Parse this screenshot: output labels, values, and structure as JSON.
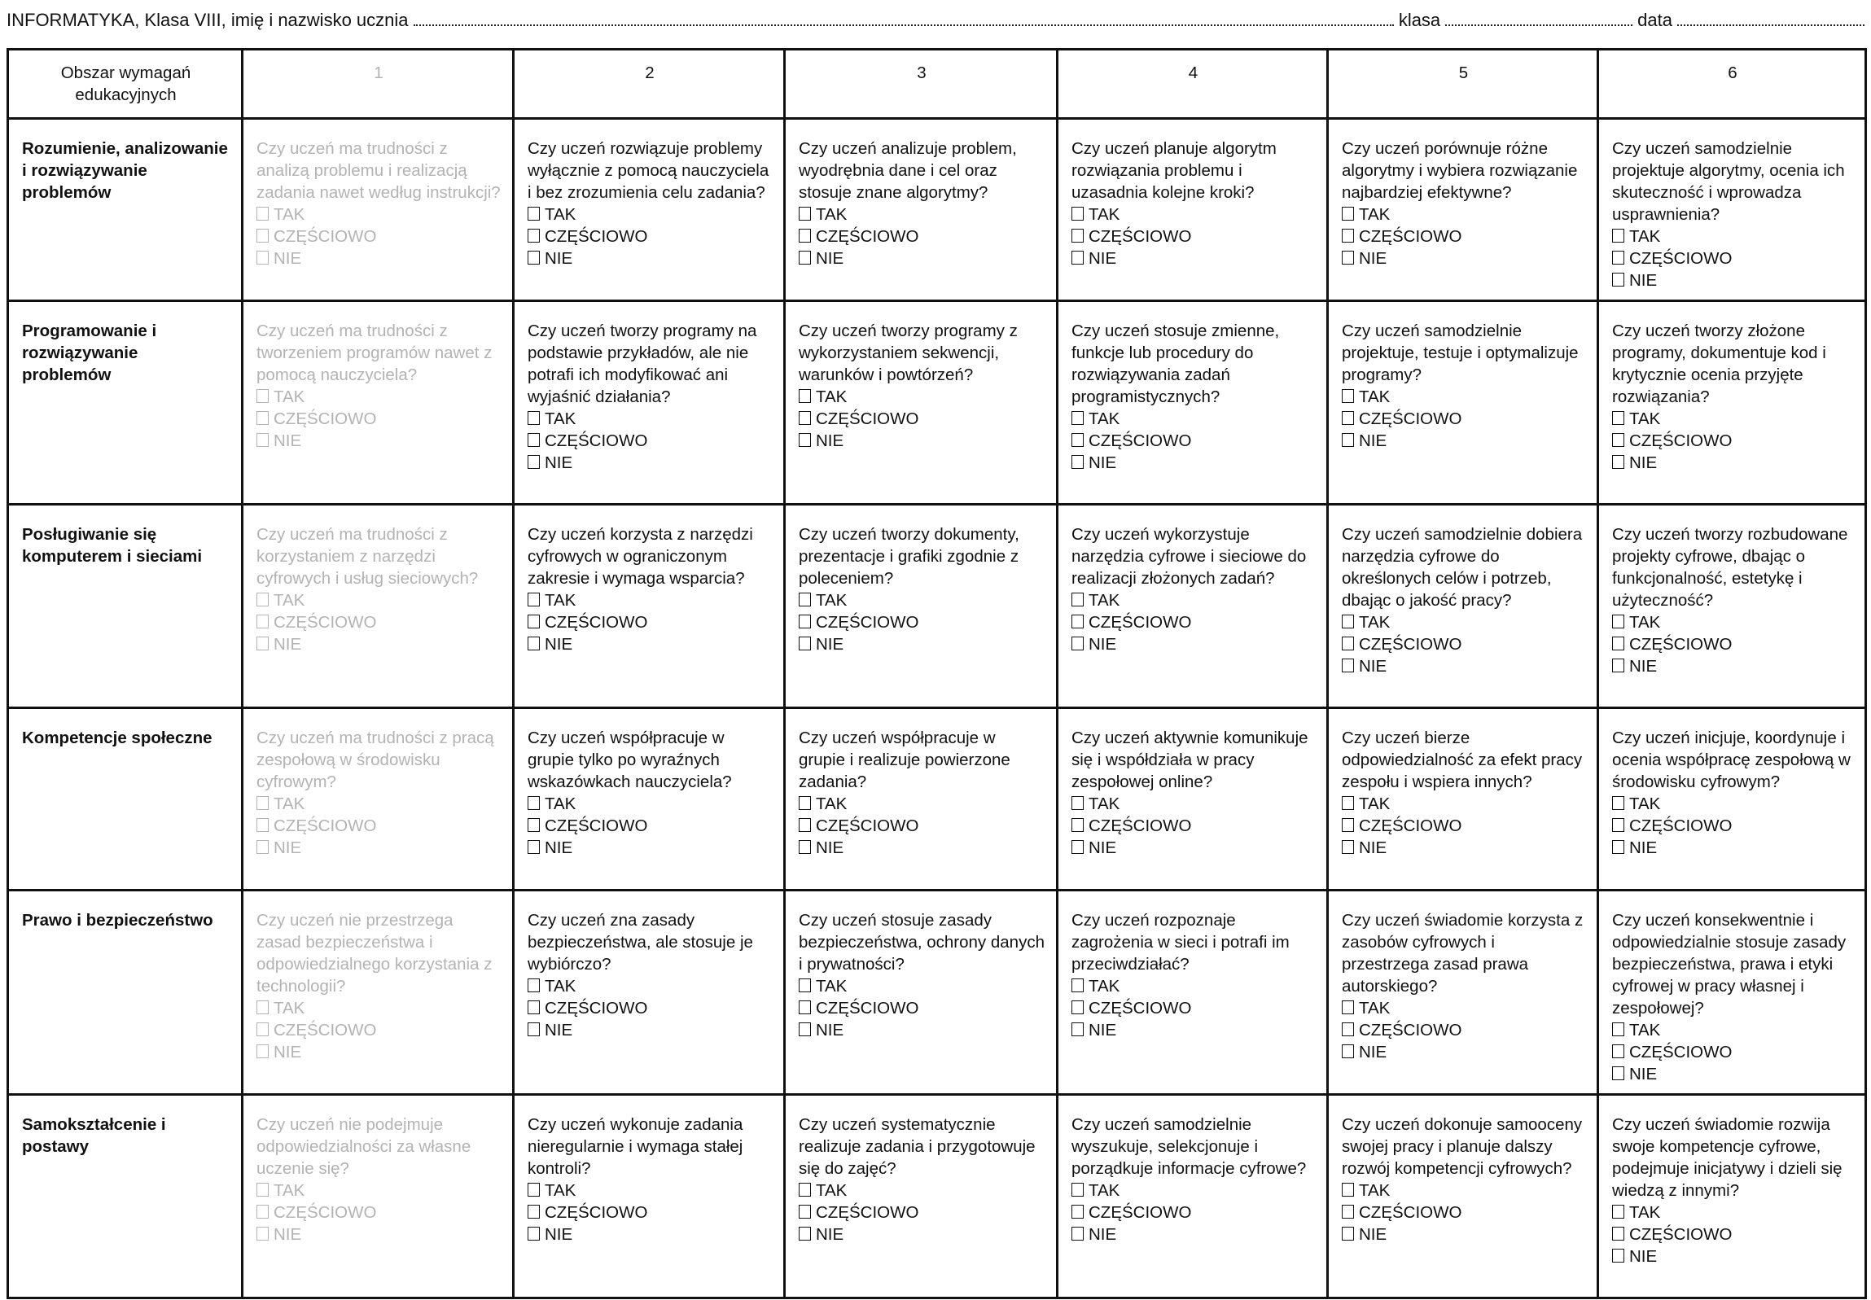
{
  "header": {
    "subject_line": "INFORMATYKA, Klasa VIII, imię i nazwisko ucznia",
    "class_label": "klasa",
    "date_label": "data"
  },
  "table": {
    "corner_header": "Obszar wymagań edukacyjnych",
    "levels": [
      "1",
      "2",
      "3",
      "4",
      "5",
      "6"
    ],
    "options": [
      "TAK",
      "CZĘŚCIOWO",
      "NIE"
    ],
    "checkbox_icon": "empty-checkbox",
    "muted_color": "#b3b3b3",
    "rows": [
      {
        "area": "Rozumienie, analizowanie i rozwiązywanie problemów",
        "questions": [
          "Czy uczeń ma trudności z analizą problemu i realizacją zadania nawet według instrukcji?",
          "Czy uczeń rozwiązuje problemy wyłącznie z pomocą nauczyciela i bez zrozumienia celu zadania?",
          "Czy uczeń analizuje problem, wyodrębnia dane i cel oraz stosuje znane algorytmy?",
          "Czy uczeń planuje algorytm rozwiązania problemu i uzasadnia kolejne kroki?",
          "Czy uczeń porównuje różne algorytmy i wybiera rozwiązanie najbardziej efektywne?",
          "Czy uczeń samodzielnie projektuje algorytmy, ocenia ich skuteczność i wprowadza usprawnienia?"
        ]
      },
      {
        "area": "Programowanie i rozwiązywanie problemów",
        "questions": [
          "Czy uczeń ma trudności z tworzeniem programów nawet z pomocą nauczyciela?",
          "Czy uczeń tworzy programy na podstawie przykładów, ale nie potrafi ich modyfikować ani wyjaśnić działania?",
          "Czy uczeń tworzy programy z wykorzystaniem sekwencji, warunków i powtórzeń?",
          "Czy uczeń stosuje zmienne, funkcje lub procedury do rozwiązywania zadań programistycznych?",
          "Czy uczeń samodzielnie projektuje, testuje i optymalizuje programy?",
          "Czy uczeń tworzy złożone programy, dokumentuje kod i krytycznie ocenia przyjęte rozwiązania?"
        ]
      },
      {
        "area": "Posługiwanie się komputerem i sieciami",
        "questions": [
          "Czy uczeń ma trudności z korzystaniem z narzędzi cyfrowych i usług sieciowych?",
          "Czy uczeń korzysta z narzędzi cyfrowych w ograniczonym zakresie i wymaga wsparcia?",
          "Czy uczeń tworzy dokumenty, prezentacje i grafiki zgodnie z poleceniem?",
          "Czy uczeń wykorzystuje narzędzia cyfrowe i sieciowe do realizacji złożonych zadań?",
          "Czy uczeń samodzielnie dobiera narzędzia cyfrowe do określonych celów i potrzeb, dbając o jakość pracy?",
          "Czy uczeń tworzy rozbudowane projekty cyfrowe, dbając o funkcjonalność, estetykę i użyteczność?"
        ]
      },
      {
        "area": "Kompetencje społeczne",
        "questions": [
          "Czy uczeń ma trudności z pracą zespołową w środowisku cyfrowym?",
          "Czy uczeń współpracuje w grupie tylko po wyraźnych wskazówkach nauczyciela?",
          "Czy uczeń współpracuje w grupie i realizuje powierzone zadania?",
          "Czy uczeń aktywnie komunikuje się i współdziała w pracy zespołowej online?",
          "Czy uczeń bierze odpowiedzialność za efekt pracy zespołu i wspiera innych?",
          "Czy uczeń inicjuje, koordynuje i ocenia współpracę zespołową w środowisku cyfrowym?"
        ]
      },
      {
        "area": "Prawo i bezpieczeństwo",
        "questions": [
          "Czy uczeń nie przestrzega zasad bezpieczeństwa i odpowiedzialnego korzystania z technologii?",
          "Czy uczeń zna zasady bezpieczeństwa, ale stosuje je wybiórczo?",
          "Czy uczeń stosuje zasady bezpieczeństwa, ochrony danych i prywatności?",
          "Czy uczeń rozpoznaje zagrożenia w sieci i potrafi im przeciwdziałać?",
          "Czy uczeń świadomie korzysta z zasobów cyfrowych i przestrzega zasad prawa autorskiego?",
          "Czy uczeń konsekwentnie i odpowiedzialnie stosuje zasady bezpieczeństwa, prawa i etyki cyfrowej w pracy własnej i zespołowej?"
        ]
      },
      {
        "area": "Samokształcenie i postawy",
        "questions": [
          "Czy uczeń nie podejmuje odpowiedzialności za własne uczenie się?",
          "Czy uczeń wykonuje zadania nieregularnie i wymaga stałej kontroli?",
          "Czy uczeń systematycznie realizuje zadania i przygotowuje się do zajęć?",
          "Czy uczeń samodzielnie wyszukuje, selekcjonuje i porządkuje informacje cyfrowe?",
          "Czy uczeń dokonuje samooceny swojej pracy i planuje dalszy rozwój kompetencji cyfrowych?",
          "Czy uczeń świadomie rozwija swoje kompetencje cyfrowe, podejmuje inicjatywy i dzieli się wiedzą z innymi?"
        ]
      }
    ]
  }
}
